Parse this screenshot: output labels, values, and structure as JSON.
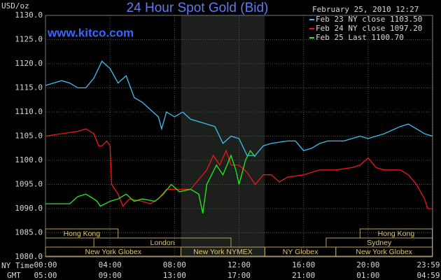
{
  "chart_data": {
    "type": "line",
    "title": "24 Hour Spot Gold (Bid)",
    "unit": "USD/oz",
    "website": "www.kitco.com",
    "timestamp": "February 25, 2010 12:27",
    "xlabel": "NY Time",
    "x2label": "GMT",
    "xlim": [
      0,
      24
    ],
    "ylim": [
      1080,
      1130
    ],
    "yticks": [
      {
        "value": 1080,
        "label": "1080.0"
      },
      {
        "value": 1085,
        "label": "1085.0"
      },
      {
        "value": 1090,
        "label": "1090.0"
      },
      {
        "value": 1095,
        "label": "1095.0"
      },
      {
        "value": 1100,
        "label": "1100.0"
      },
      {
        "value": 1105,
        "label": "1105.0"
      },
      {
        "value": 1110,
        "label": "1110.0"
      },
      {
        "value": 1115,
        "label": "1115.0"
      },
      {
        "value": 1120,
        "label": "1120.0"
      },
      {
        "value": 1125,
        "label": "1125.0"
      },
      {
        "value": 1130,
        "label": "1130.0"
      }
    ],
    "xticks": [
      {
        "value": 0,
        "label": "00:00"
      },
      {
        "value": 4,
        "label": "04:00"
      },
      {
        "value": 8,
        "label": "08:00"
      },
      {
        "value": 12,
        "label": "12:00"
      },
      {
        "value": 16,
        "label": "16:00"
      },
      {
        "value": 20,
        "label": "20:00"
      },
      {
        "value": 23.98,
        "label": "23:59"
      }
    ],
    "gmt_labels": [
      "05:00",
      "09:00",
      "13:00",
      "17:00",
      "21:00",
      "01:00",
      "04:59"
    ],
    "grid": true,
    "shaded": [
      8.4,
      13.6
    ],
    "sessions": [
      {
        "label": "Hong Kong",
        "row": 1,
        "start": 0,
        "end": 4.5
      },
      {
        "label": "Hong Kong",
        "row": 1,
        "start": 19.5,
        "end": 23.98
      },
      {
        "label": "London",
        "row": 2,
        "start": 3,
        "end": 11.5
      },
      {
        "label": "Sydney",
        "row": 2,
        "start": 17.4,
        "end": 23.98
      },
      {
        "label": "New York Globex",
        "row": 3,
        "start": 0,
        "end": 8.4
      },
      {
        "label": "New York NYMEX",
        "row": 3,
        "start": 8.4,
        "end": 13.6
      },
      {
        "label": "NY Globex",
        "row": 3,
        "start": 13.6,
        "end": 18
      },
      {
        "label": "New York Globex",
        "row": 3,
        "start": 18,
        "end": 23.98
      }
    ],
    "series": [
      {
        "name": "Feb 23 NY close 1103.50",
        "color": "#3cc0f0",
        "x": [
          0,
          0.5,
          1,
          1.5,
          2,
          2.5,
          3,
          3.5,
          4,
          4.5,
          5,
          5.5,
          6,
          6.5,
          7,
          7.2,
          7.5,
          8,
          8.5,
          9,
          9.5,
          10,
          10.5,
          11,
          11.5,
          12,
          12.5,
          13,
          13.5,
          14,
          15,
          15.5,
          16,
          16.5,
          17,
          17.5,
          18.5,
          19.5,
          20,
          21,
          22,
          22.5,
          23,
          23.5,
          23.98
        ],
        "values": [
          1115.5,
          1116,
          1116.5,
          1116,
          1115,
          1115,
          1117,
          1120.5,
          1119,
          1116,
          1117.5,
          1113,
          1112,
          1110.5,
          1109,
          1106.5,
          1110,
          1109,
          1110,
          1108.5,
          1108,
          1107.5,
          1107,
          1103.5,
          1105,
          1104.5,
          1101,
          1101,
          1103,
          1103.5,
          1104,
          1104,
          1102,
          1102.5,
          1103.5,
          1104,
          1104,
          1105,
          1104.5,
          1105.5,
          1107,
          1107.5,
          1106.5,
          1105.5,
          1105
        ]
      },
      {
        "name": "Feb 24 NY close 1097.20",
        "color": "#ee1818",
        "x": [
          0,
          1,
          2,
          2.5,
          3,
          3.3,
          3.5,
          3.8,
          4,
          4.1,
          4.5,
          4.8,
          5.2,
          6,
          6.5,
          7,
          7.5,
          8,
          8.5,
          9,
          9.5,
          10,
          10.4,
          10.8,
          11.2,
          11.5,
          12,
          12.5,
          13,
          13.5,
          14,
          14.5,
          15,
          16,
          17,
          18,
          19,
          19.5,
          20,
          20.5,
          21,
          22,
          22.5,
          23,
          23.5,
          23.7,
          23.98
        ],
        "values": [
          1105,
          1105.5,
          1106,
          1106.5,
          1105.5,
          1103,
          1103,
          1104,
          1103,
          1095,
          1093,
          1090.5,
          1092,
          1091.5,
          1091,
          1092,
          1094,
          1094,
          1094,
          1094,
          1096,
          1098,
          1101,
          1099,
          1102,
          1099,
          1099,
          1097.5,
          1095,
          1097,
          1097,
          1095.5,
          1096.5,
          1097,
          1098,
          1098,
          1098.5,
          1099,
          1100.5,
          1098.5,
          1098,
          1098,
          1097,
          1095,
          1092,
          1090,
          1090
        ]
      },
      {
        "name": "Feb 25 Last 1100.70",
        "color": "#22ee22",
        "x": [
          0,
          1,
          1.5,
          2,
          2.5,
          3,
          3.2,
          3.4,
          4,
          4.5,
          5,
          5.5,
          6,
          6.8,
          7.3,
          7.8,
          8.3,
          9,
          9.5,
          9.75,
          10,
          10.3,
          10.6,
          11,
          11.5,
          11.8,
          12,
          12.4,
          12.7,
          13
        ],
        "values": [
          1091,
          1091,
          1091,
          1092.5,
          1093,
          1092,
          1091.5,
          1090.5,
          1091.5,
          1092,
          1093,
          1091.5,
          1092,
          1091.5,
          1093,
          1095,
          1093.5,
          1094,
          1093,
          1089,
          1095,
          1097,
          1099,
          1097,
          1101,
          1098,
          1095,
          1100,
          1102,
          1100.7
        ]
      }
    ]
  }
}
